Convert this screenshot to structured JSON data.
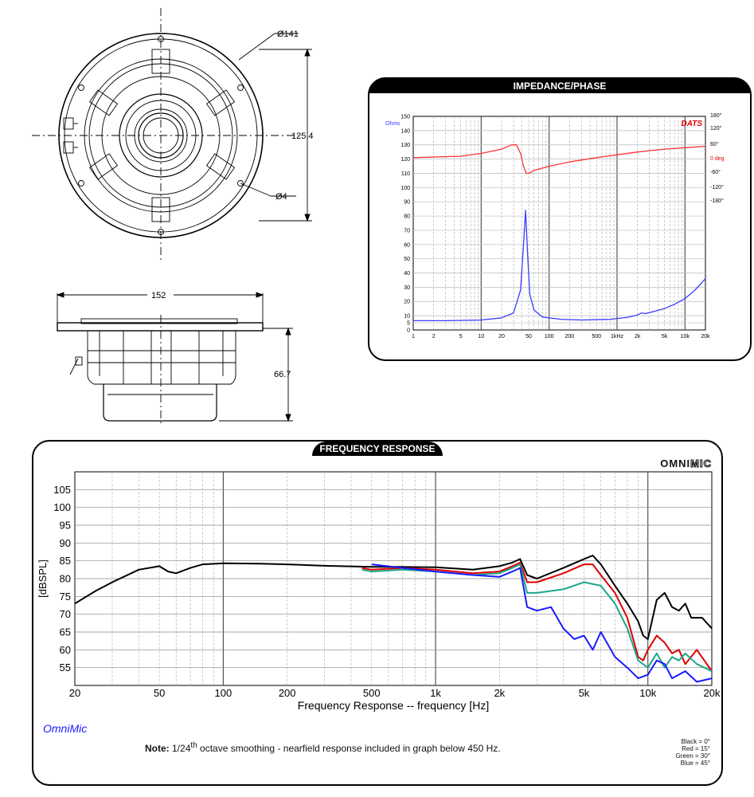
{
  "drawing": {
    "front_view": {
      "outer_diameter_label": "Ø141",
      "mount_height_label": "125.4",
      "hole_label": "Ø4"
    },
    "side_view": {
      "width_label": "152",
      "depth_label": "66.7"
    }
  },
  "chart_data": [
    {
      "type": "line",
      "panel_title": "IMPEDANCE/PHASE",
      "brand": "DATS",
      "x_scale": "log",
      "xlim": [
        1,
        20000
      ],
      "x_ticks": [
        1,
        2,
        5,
        10,
        20,
        50,
        100,
        200,
        500,
        1000,
        2000,
        5000,
        10000,
        20000
      ],
      "x_tick_labels": [
        "1",
        "2",
        "5",
        "10",
        "20",
        "50",
        "100",
        "200",
        "500",
        "1kHz",
        "2k",
        "5k",
        "10k",
        "20k"
      ],
      "ylim": [
        0,
        150
      ],
      "y_ticks": [
        0,
        5,
        10,
        20,
        30,
        40,
        50,
        60,
        70,
        80,
        90,
        100,
        110,
        120,
        130,
        140,
        150
      ],
      "y_unit_label": "Ohms",
      "phase_axis_ticks": [
        "180°",
        "120°",
        "60°",
        "0 deg",
        "-60°",
        "-120°",
        "-180°"
      ],
      "series": [
        {
          "color": "#3a3aff",
          "x": [
            1,
            3,
            10,
            20,
            30,
            38,
            42,
            45,
            48,
            52,
            60,
            80,
            150,
            300,
            800,
            1500,
            2000,
            2300,
            2600,
            3500,
            5000,
            7000,
            10000,
            14000,
            20000
          ],
          "y": [
            6.5,
            6.5,
            7,
            8.5,
            12,
            28,
            60,
            84,
            55,
            25,
            14,
            9,
            7.5,
            7,
            7.5,
            9,
            10.5,
            12,
            11.5,
            13,
            15,
            18,
            22,
            28,
            36
          ]
        },
        {
          "color": "#ff3333",
          "x": [
            1,
            5,
            10,
            20,
            28,
            33,
            38,
            42,
            46,
            50,
            60,
            100,
            200,
            500,
            1000,
            2000,
            5000,
            10000,
            20000
          ],
          "y": [
            121,
            122,
            124,
            127,
            130,
            130,
            124,
            115,
            110,
            110,
            112,
            115,
            118,
            121,
            123,
            125,
            127,
            128,
            129
          ]
        }
      ]
    },
    {
      "type": "line",
      "panel_title": "FREQUENCY RESPONSE",
      "brand": "OMNIMIC",
      "x_scale": "log",
      "xlim": [
        20,
        20000
      ],
      "x_ticks": [
        20,
        50,
        100,
        200,
        500,
        1000,
        2000,
        5000,
        10000,
        20000
      ],
      "x_tick_labels": [
        "20",
        "50",
        "100",
        "200",
        "500",
        "1k",
        "2k",
        "5k",
        "10k",
        "20k"
      ],
      "ylim": [
        50,
        110
      ],
      "y_ticks": [
        55,
        60,
        65,
        70,
        75,
        80,
        85,
        90,
        95,
        100,
        105
      ],
      "xlabel": "Frequency Response -- frequency [Hz]",
      "ylabel": "[dBSPL]",
      "footer_brand": "OmniMic",
      "note_bold": "Note:",
      "note_prefix": " 1/24",
      "note_sup": "th",
      "note_rest": " octave smoothing - nearfield response included in graph below 450 Hz.",
      "legend_entries": [
        "Black = 0°",
        "Red = 15°",
        "Green = 30°",
        "Blue = 45°"
      ],
      "series": [
        {
          "color": "#000000",
          "x": [
            20,
            25,
            30,
            40,
            50,
            55,
            60,
            70,
            80,
            100,
            150,
            200,
            300,
            500,
            700,
            1000,
            1500,
            2000,
            2300,
            2500,
            2700,
            3000,
            4000,
            5000,
            5500,
            6000,
            7000,
            8000,
            9000,
            9500,
            10000,
            11000,
            12000,
            13000,
            14000,
            15000,
            16000,
            18000,
            20000
          ],
          "y": [
            73,
            76.5,
            79,
            82.5,
            83.5,
            82,
            81.5,
            83,
            84,
            84.3,
            84.2,
            84,
            83.6,
            83.3,
            83.3,
            83.2,
            82.5,
            83.5,
            84.5,
            85.5,
            81,
            80,
            83,
            85.5,
            86.5,
            84,
            78,
            73,
            68,
            64,
            63,
            74,
            76,
            72,
            71,
            73,
            69,
            69,
            66
          ]
        },
        {
          "color": "#dd0000",
          "x": [
            450,
            500,
            700,
            1000,
            1500,
            2000,
            2300,
            2500,
            2700,
            3000,
            4000,
            5000,
            5500,
            6000,
            7000,
            8000,
            9000,
            9500,
            10000,
            11000,
            12000,
            13000,
            14000,
            15000,
            17000,
            20000
          ],
          "y": [
            83,
            82.5,
            83,
            82.5,
            81.5,
            82,
            83.5,
            84.5,
            79,
            79,
            81.5,
            84,
            84,
            81,
            76,
            69,
            58,
            57,
            60,
            64,
            62,
            59,
            60,
            56,
            60,
            54
          ]
        },
        {
          "color": "#1aa88a",
          "x": [
            450,
            500,
            700,
            1000,
            1500,
            2000,
            2300,
            2500,
            2700,
            3000,
            4000,
            5000,
            6000,
            7000,
            8000,
            9000,
            10000,
            11000,
            12000,
            13000,
            14000,
            15000,
            17000,
            20000
          ],
          "y": [
            82.5,
            82,
            82.5,
            82,
            81,
            81.5,
            83,
            84,
            76,
            76,
            77,
            79,
            78,
            73,
            66,
            57,
            55,
            59,
            55,
            58,
            57,
            59,
            56,
            54
          ]
        },
        {
          "color": "#1a1aff",
          "x": [
            500,
            700,
            1000,
            1500,
            2000,
            2300,
            2500,
            2700,
            3000,
            3500,
            4000,
            4500,
            5000,
            5500,
            6000,
            7000,
            8000,
            9000,
            10000,
            11000,
            12000,
            13000,
            15000,
            17000,
            20000
          ],
          "y": [
            84,
            83,
            82,
            81,
            80.5,
            82,
            83,
            72,
            71,
            72,
            66,
            63,
            64,
            60,
            65,
            58,
            55,
            52,
            53,
            57,
            56,
            52,
            54,
            51,
            52
          ]
        }
      ]
    }
  ]
}
